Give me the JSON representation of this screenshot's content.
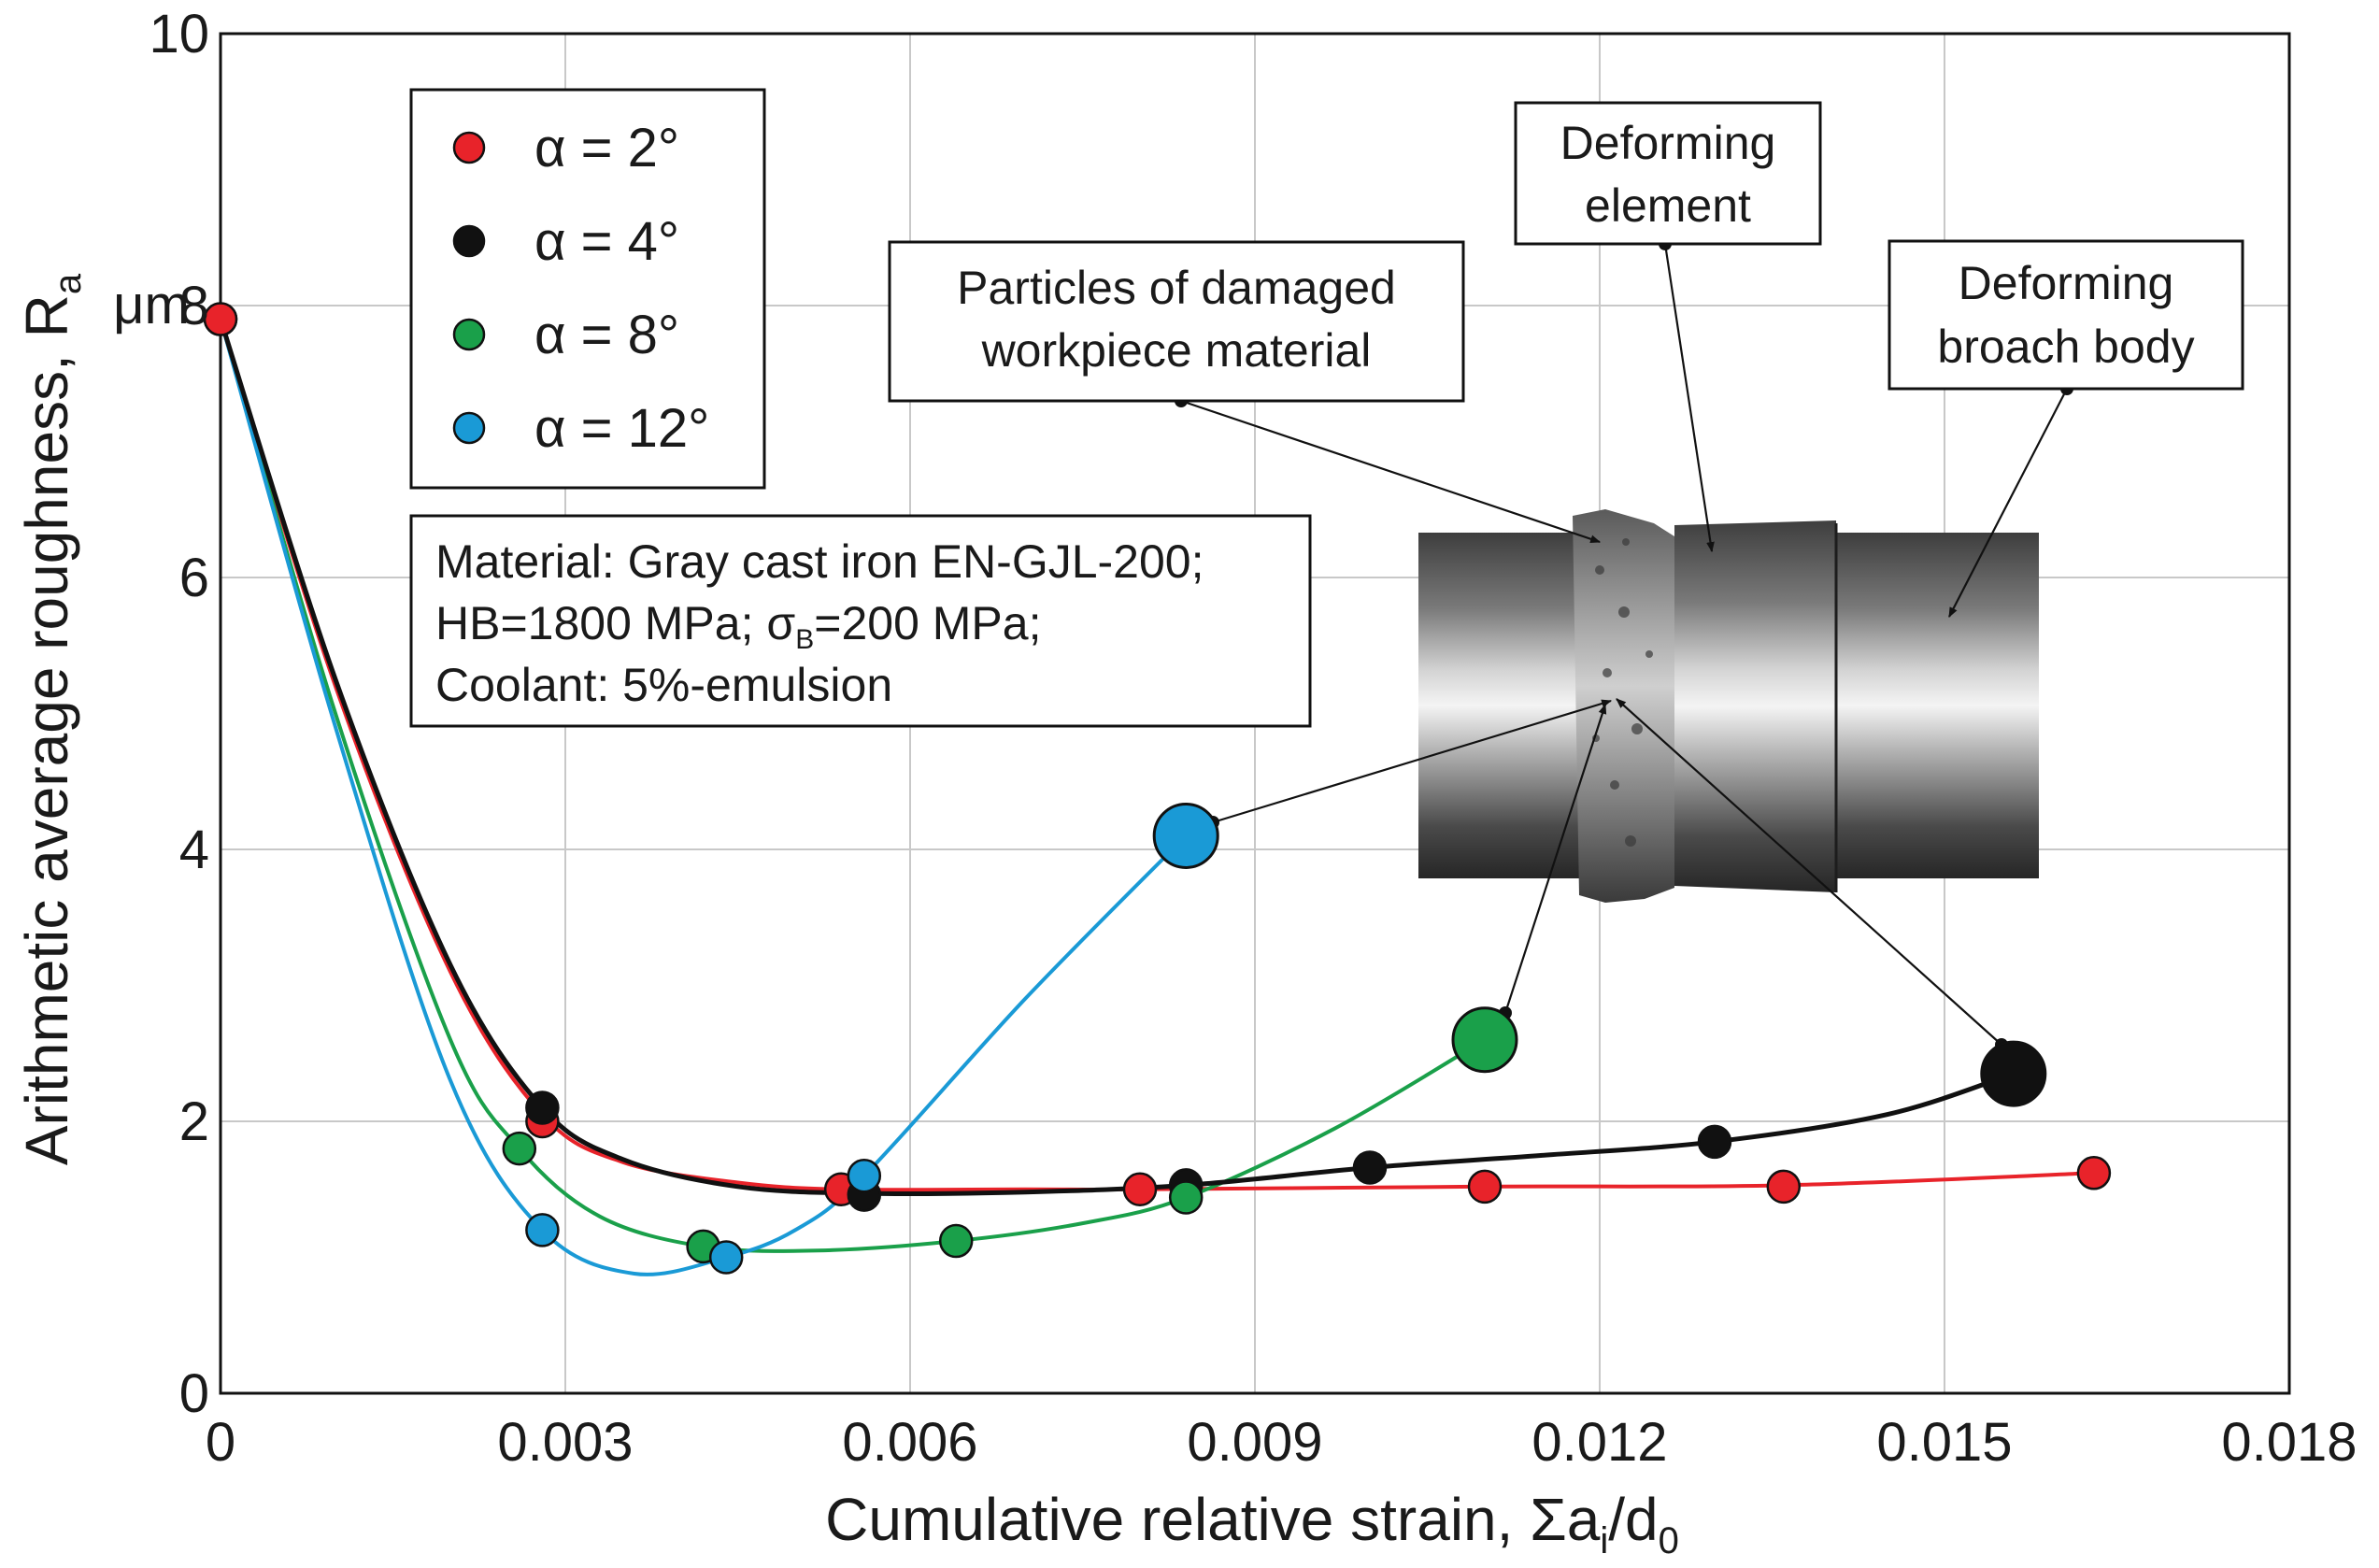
{
  "chart_data": {
    "type": "line",
    "xlabel": "Cumulative relative strain, Σa",
    "xlabel_sub1": "i",
    "xlabel_mid": "/d",
    "xlabel_sub2": "0",
    "ylabel": "Arithmetic average roughness, R",
    "ylabel_sub": "a",
    "yunit": "μm",
    "xlim": [
      0,
      0.018
    ],
    "ylim": [
      0,
      10
    ],
    "grid": true,
    "xticks": [
      0,
      0.003,
      0.006,
      0.009,
      0.012,
      0.015,
      0.018
    ],
    "xtick_labels": [
      "0",
      "0.003",
      "0.006",
      "0.009",
      "0.012",
      "0.015",
      "0.018"
    ],
    "yticks": [
      0,
      2,
      4,
      6,
      8,
      10
    ],
    "ytick_labels": [
      "0",
      "2",
      "4",
      "6",
      "8",
      "10"
    ],
    "legend": {
      "placement": "top-left",
      "entries": [
        {
          "greek": "α",
          "rest": " = 2°"
        },
        {
          "greek": "α",
          "rest": " = 4°"
        },
        {
          "greek": "α",
          "rest": " = 8°"
        },
        {
          "greek": "α",
          "rest": " = 12°"
        }
      ]
    },
    "series": [
      {
        "name": "α = 2°",
        "color": "#e8232a",
        "points": [
          [
            0,
            7.9
          ],
          [
            0.0028,
            2.0
          ],
          [
            0.0054,
            1.5
          ],
          [
            0.008,
            1.5
          ],
          [
            0.011,
            1.52
          ],
          [
            0.0136,
            1.52
          ],
          [
            0.0163,
            1.62
          ]
        ],
        "curve": [
          [
            0,
            7.9
          ],
          [
            0.001,
            5.2
          ],
          [
            0.002,
            3.1
          ],
          [
            0.0028,
            2.05
          ],
          [
            0.0035,
            1.7
          ],
          [
            0.0045,
            1.55
          ],
          [
            0.0054,
            1.5
          ],
          [
            0.007,
            1.5
          ],
          [
            0.008,
            1.5
          ],
          [
            0.011,
            1.52
          ],
          [
            0.0136,
            1.53
          ],
          [
            0.0163,
            1.62
          ]
        ],
        "final_large": false
      },
      {
        "name": "α = 4°",
        "color": "#111111",
        "points": [
          [
            0.0028,
            2.1
          ],
          [
            0.0056,
            1.46
          ],
          [
            0.0084,
            1.53
          ],
          [
            0.01,
            1.66
          ],
          [
            0.013,
            1.85
          ],
          [
            0.0156,
            2.35
          ]
        ],
        "curve": [
          [
            0,
            7.9
          ],
          [
            0.001,
            5.25
          ],
          [
            0.002,
            3.15
          ],
          [
            0.0028,
            2.1
          ],
          [
            0.0035,
            1.72
          ],
          [
            0.0045,
            1.52
          ],
          [
            0.0056,
            1.47
          ],
          [
            0.007,
            1.48
          ],
          [
            0.0084,
            1.53
          ],
          [
            0.01,
            1.66
          ],
          [
            0.0115,
            1.75
          ],
          [
            0.013,
            1.85
          ],
          [
            0.0145,
            2.05
          ],
          [
            0.0156,
            2.35
          ]
        ],
        "final_large": true
      },
      {
        "name": "α = 8°",
        "color": "#1aa04a",
        "points": [
          [
            0.0026,
            1.8
          ],
          [
            0.0042,
            1.08
          ],
          [
            0.0064,
            1.12
          ],
          [
            0.0084,
            1.44
          ],
          [
            0.011,
            2.6
          ]
        ],
        "curve": [
          [
            0,
            7.9
          ],
          [
            0.001,
            5.0
          ],
          [
            0.002,
            2.6
          ],
          [
            0.0026,
            1.8
          ],
          [
            0.0033,
            1.3
          ],
          [
            0.0042,
            1.08
          ],
          [
            0.0052,
            1.05
          ],
          [
            0.0064,
            1.12
          ],
          [
            0.0075,
            1.25
          ],
          [
            0.0084,
            1.44
          ],
          [
            0.0097,
            1.95
          ],
          [
            0.011,
            2.6
          ]
        ],
        "final_large": true
      },
      {
        "name": "α = 12°",
        "color": "#1a9ad6",
        "points": [
          [
            0.0028,
            1.2
          ],
          [
            0.0044,
            1.0
          ],
          [
            0.0056,
            1.6
          ],
          [
            0.0084,
            4.1
          ]
        ],
        "curve": [
          [
            0,
            7.9
          ],
          [
            0.001,
            4.9
          ],
          [
            0.002,
            2.3
          ],
          [
            0.0028,
            1.2
          ],
          [
            0.0036,
            0.88
          ],
          [
            0.0044,
            1.0
          ],
          [
            0.005,
            1.2
          ],
          [
            0.0056,
            1.6
          ],
          [
            0.007,
            2.9
          ],
          [
            0.0084,
            4.1
          ]
        ],
        "final_large": true
      }
    ],
    "note_lines": [
      {
        "text": "Material: Gray cast iron EN-GJL-200;"
      },
      {
        "pre": "HB=1800 MPa; ",
        "sym": "σ",
        "sub": "B",
        "post": "=200 MPa;"
      },
      {
        "text": "Coolant: 5%-emulsion"
      }
    ],
    "annotations": [
      {
        "lines": [
          "Particles of damaged",
          "workpiece material"
        ]
      },
      {
        "lines": [
          "Deforming",
          "element"
        ]
      },
      {
        "lines": [
          "Deforming",
          "broach body"
        ]
      }
    ]
  }
}
